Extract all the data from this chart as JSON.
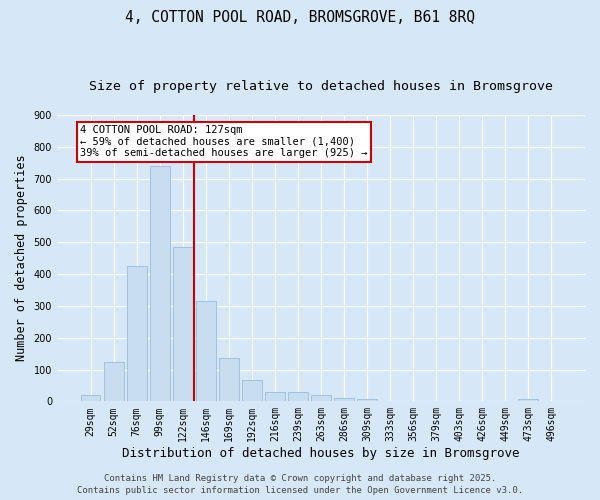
{
  "title_line1": "4, COTTON POOL ROAD, BROMSGROVE, B61 8RQ",
  "title_line2": "Size of property relative to detached houses in Bromsgrove",
  "xlabel": "Distribution of detached houses by size in Bromsgrove",
  "ylabel": "Number of detached properties",
  "categories": [
    "29sqm",
    "52sqm",
    "76sqm",
    "99sqm",
    "122sqm",
    "146sqm",
    "169sqm",
    "192sqm",
    "216sqm",
    "239sqm",
    "263sqm",
    "286sqm",
    "309sqm",
    "333sqm",
    "356sqm",
    "379sqm",
    "403sqm",
    "426sqm",
    "449sqm",
    "473sqm",
    "496sqm"
  ],
  "values": [
    20,
    125,
    425,
    740,
    485,
    315,
    135,
    68,
    30,
    30,
    20,
    12,
    8,
    0,
    0,
    0,
    0,
    0,
    0,
    8,
    0
  ],
  "bar_color": "#c9ddf0",
  "bar_edge_color": "#8fb4d4",
  "bar_width": 0.85,
  "vline_color": "#cc0000",
  "vline_x_index": 4.5,
  "annotation_text": "4 COTTON POOL ROAD: 127sqm\n← 59% of detached houses are smaller (1,400)\n39% of semi-detached houses are larger (925) →",
  "annotation_box_facecolor": "#ffffff",
  "annotation_box_edgecolor": "#cc0000",
  "ylim": [
    0,
    900
  ],
  "yticks": [
    0,
    100,
    200,
    300,
    400,
    500,
    600,
    700,
    800,
    900
  ],
  "background_color": "#d6e8f7",
  "grid_color": "#ffffff",
  "footer_line1": "Contains HM Land Registry data © Crown copyright and database right 2025.",
  "footer_line2": "Contains public sector information licensed under the Open Government Licence v3.0.",
  "title_fontsize": 10.5,
  "subtitle_fontsize": 9.5,
  "xlabel_fontsize": 9,
  "ylabel_fontsize": 8.5,
  "tick_fontsize": 7,
  "annot_fontsize": 7.5,
  "footer_fontsize": 6.5
}
